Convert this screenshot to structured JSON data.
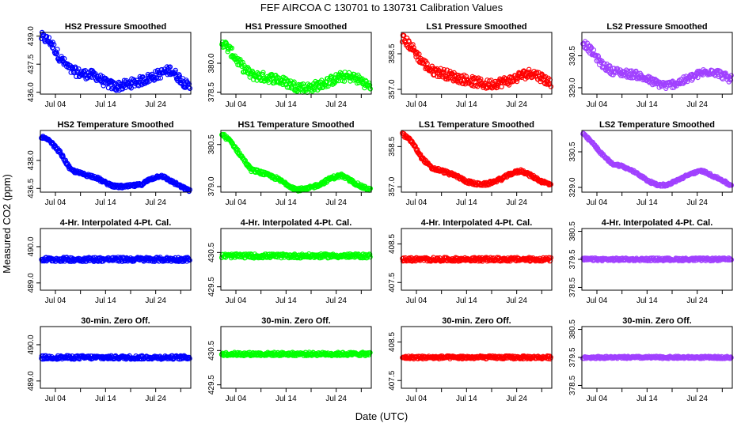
{
  "figure": {
    "title": "FEF   AIRCOA C   130701 to 130731   Calibration Values",
    "xlabel": "Date (UTC)",
    "ylabel": "Measured CO2 (ppm)",
    "x_tick_labels": [
      "Jul 04",
      "Jul 14",
      "Jul 24"
    ]
  },
  "chart_data": [
    {
      "type": "scatter",
      "title": "HS2 Pressure Smoothed",
      "color": "#0000ff",
      "xlim": [
        1,
        31
      ],
      "ylim": [
        435.9,
        439.2
      ],
      "yticks": [
        "436.0",
        "437.5",
        "439.0"
      ],
      "ytick_values": [
        436.0,
        437.5,
        439.0
      ],
      "x_day": [
        1,
        3,
        5,
        7,
        9,
        12,
        14,
        16,
        18,
        21,
        23,
        25,
        27,
        29,
        30.5
      ],
      "y": [
        439.0,
        438.7,
        437.8,
        437.2,
        437.0,
        436.9,
        436.5,
        436.3,
        436.4,
        436.6,
        436.8,
        437.0,
        437.2,
        436.7,
        436.3
      ],
      "spread": 0.25
    },
    {
      "type": "scatter",
      "title": "HS1 Pressure Smoothed",
      "color": "#00ff00",
      "xlim": [
        1,
        31
      ],
      "ylim": [
        378.4,
        381.6
      ],
      "yticks": [
        "378.5",
        "380.0"
      ],
      "ytick_values": [
        378.5,
        380.0
      ],
      "x_day": [
        1,
        3,
        5,
        7,
        9,
        12,
        14,
        16,
        18,
        21,
        23,
        25,
        27,
        29,
        30.5
      ],
      "y": [
        381.2,
        380.6,
        379.9,
        379.4,
        379.3,
        379.2,
        379.0,
        378.8,
        378.7,
        378.9,
        379.1,
        379.3,
        379.3,
        379.1,
        378.8
      ],
      "spread": 0.25
    },
    {
      "type": "scatter",
      "title": "LS1 Pressure Smoothed",
      "color": "#ff0000",
      "xlim": [
        1,
        31
      ],
      "ylim": [
        356.8,
        359.4
      ],
      "yticks": [
        "357.0",
        "358.5"
      ],
      "ytick_values": [
        357.0,
        358.5
      ],
      "x_day": [
        1,
        3,
        5,
        7,
        9,
        12,
        14,
        16,
        18,
        21,
        23,
        25,
        27,
        29,
        30.5
      ],
      "y": [
        359.2,
        358.8,
        358.2,
        357.8,
        357.7,
        357.5,
        357.4,
        357.3,
        357.2,
        357.3,
        357.4,
        357.6,
        357.7,
        357.5,
        357.3
      ],
      "spread": 0.2
    },
    {
      "type": "scatter",
      "title": "LS2 Pressure Smoothed",
      "color": "#a040ff",
      "xlim": [
        1,
        31
      ],
      "ylim": [
        328.7,
        331.6
      ],
      "yticks": [
        "329.0",
        "330.5"
      ],
      "ytick_values": [
        329.0,
        330.5
      ],
      "x_day": [
        1,
        3,
        5,
        7,
        9,
        12,
        14,
        16,
        18,
        21,
        23,
        25,
        27,
        29,
        30.5
      ],
      "y": [
        331.2,
        330.7,
        330.1,
        329.8,
        329.7,
        329.6,
        329.4,
        329.2,
        329.1,
        329.3,
        329.5,
        329.7,
        329.8,
        329.6,
        329.4
      ],
      "spread": 0.18
    },
    {
      "type": "scatter",
      "title": "HS2 Temperature Smoothed",
      "color": "#0000ff",
      "xlim": [
        1,
        31
      ],
      "ylim": [
        436.3,
        439.6
      ],
      "yticks": [
        "436.5",
        "438.0"
      ],
      "ytick_values": [
        436.5,
        438.0
      ],
      "x_day": [
        1,
        3,
        5,
        7,
        9,
        12,
        14,
        16,
        18,
        21,
        23,
        25,
        27,
        29,
        30.5
      ],
      "y": [
        439.3,
        439.0,
        438.4,
        437.5,
        437.3,
        437.1,
        436.8,
        436.6,
        436.6,
        436.7,
        437.0,
        437.2,
        436.9,
        436.6,
        436.4
      ],
      "spread": 0.08
    },
    {
      "type": "scatter",
      "title": "HS1 Temperature Smoothed",
      "color": "#00ff00",
      "xlim": [
        1,
        31
      ],
      "ylim": [
        378.8,
        381.0
      ],
      "yticks": [
        "379.0",
        "380.5"
      ],
      "ytick_values": [
        379.0,
        380.5
      ],
      "x_day": [
        1,
        3,
        5,
        7,
        9,
        12,
        14,
        16,
        18,
        21,
        23,
        25,
        27,
        29,
        30.5
      ],
      "y": [
        380.9,
        380.6,
        380.1,
        379.6,
        379.5,
        379.3,
        379.1,
        378.9,
        378.9,
        379.1,
        379.3,
        379.4,
        379.2,
        379.0,
        378.9
      ],
      "spread": 0.06
    },
    {
      "type": "scatter",
      "title": "LS1 Temperature Smoothed",
      "color": "#ff0000",
      "xlim": [
        1,
        31
      ],
      "ylim": [
        356.8,
        359.1
      ],
      "yticks": [
        "357.0",
        "358.5"
      ],
      "ytick_values": [
        357.0,
        358.5
      ],
      "x_day": [
        1,
        3,
        5,
        7,
        9,
        12,
        14,
        16,
        18,
        21,
        23,
        25,
        27,
        29,
        30.5
      ],
      "y": [
        359.0,
        358.7,
        358.1,
        357.7,
        357.6,
        357.4,
        357.2,
        357.1,
        357.1,
        357.3,
        357.5,
        357.6,
        357.4,
        357.2,
        357.1
      ],
      "spread": 0.06
    },
    {
      "type": "scatter",
      "title": "LS2 Temperature Smoothed",
      "color": "#a040ff",
      "xlim": [
        1,
        31
      ],
      "ylim": [
        328.8,
        331.4
      ],
      "yticks": [
        "329.0",
        "330.5"
      ],
      "ytick_values": [
        329.0,
        330.5
      ],
      "x_day": [
        1,
        3,
        5,
        7,
        9,
        12,
        14,
        16,
        18,
        21,
        23,
        25,
        27,
        29,
        30.5
      ],
      "y": [
        331.3,
        330.9,
        330.4,
        330.0,
        329.9,
        329.6,
        329.3,
        329.1,
        329.1,
        329.4,
        329.6,
        329.7,
        329.5,
        329.3,
        329.1
      ],
      "spread": 0.05
    },
    {
      "type": "scatter",
      "title": "4-Hr. Interpolated 4-Pt. Cal.",
      "color": "#0000ff",
      "xlim": [
        1,
        31
      ],
      "ylim": [
        488.8,
        490.5
      ],
      "yticks": [
        "489.0",
        "490.0"
      ],
      "ytick_values": [
        489.0,
        490.0
      ],
      "x_day": [
        1,
        31
      ],
      "y": [
        489.65,
        489.65
      ],
      "spread": 0.06
    },
    {
      "type": "scatter",
      "title": "4-Hr. Interpolated 4-Pt. Cal.",
      "color": "#00ff00",
      "xlim": [
        1,
        31
      ],
      "ylim": [
        429.4,
        431.2
      ],
      "yticks": [
        "429.5",
        "430.5"
      ],
      "ytick_values": [
        429.5,
        430.5
      ],
      "x_day": [
        1,
        31
      ],
      "y": [
        430.4,
        430.4
      ],
      "spread": 0.06
    },
    {
      "type": "scatter",
      "title": "4-Hr. Interpolated 4-Pt. Cal.",
      "color": "#ff0000",
      "xlim": [
        1,
        31
      ],
      "ylim": [
        407.3,
        408.9
      ],
      "yticks": [
        "407.5",
        "408.5"
      ],
      "ytick_values": [
        407.5,
        408.5
      ],
      "x_day": [
        1,
        31
      ],
      "y": [
        408.1,
        408.1
      ],
      "spread": 0.05
    },
    {
      "type": "scatter",
      "title": "4-Hr. Interpolated 4-Pt. Cal.",
      "color": "#a040ff",
      "xlim": [
        1,
        31
      ],
      "ylim": [
        378.4,
        380.6
      ],
      "yticks": [
        "378.5",
        "379.5",
        "380.5"
      ],
      "ytick_values": [
        378.5,
        379.5,
        380.5
      ],
      "x_day": [
        1,
        31
      ],
      "y": [
        379.5,
        379.5
      ],
      "spread": 0.05
    },
    {
      "type": "scatter",
      "title": "30-min. Zero Off.",
      "color": "#0000ff",
      "xlim": [
        1,
        31
      ],
      "ylim": [
        488.8,
        490.5
      ],
      "yticks": [
        "489.0",
        "490.0"
      ],
      "ytick_values": [
        489.0,
        490.0
      ],
      "x_day": [
        1,
        31
      ],
      "y": [
        489.65,
        489.65
      ],
      "spread": 0.05
    },
    {
      "type": "scatter",
      "title": "30-min. Zero Off.",
      "color": "#00ff00",
      "xlim": [
        1,
        31
      ],
      "ylim": [
        429.4,
        431.2
      ],
      "yticks": [
        "429.5",
        "430.5"
      ],
      "ytick_values": [
        429.5,
        430.5
      ],
      "x_day": [
        1,
        31
      ],
      "y": [
        430.4,
        430.4
      ],
      "spread": 0.05
    },
    {
      "type": "scatter",
      "title": "30-min. Zero Off.",
      "color": "#ff0000",
      "xlim": [
        1,
        31
      ],
      "ylim": [
        407.3,
        408.9
      ],
      "yticks": [
        "407.5",
        "408.5"
      ],
      "ytick_values": [
        407.5,
        408.5
      ],
      "x_day": [
        1,
        31
      ],
      "y": [
        408.1,
        408.1
      ],
      "spread": 0.04
    },
    {
      "type": "scatter",
      "title": "30-min. Zero Off.",
      "color": "#a040ff",
      "xlim": [
        1,
        31
      ],
      "ylim": [
        378.4,
        380.6
      ],
      "yticks": [
        "378.5",
        "379.5",
        "380.5"
      ],
      "ytick_values": [
        378.5,
        379.5,
        380.5
      ],
      "x_day": [
        1,
        31
      ],
      "y": [
        379.5,
        379.5
      ],
      "spread": 0.04
    }
  ]
}
